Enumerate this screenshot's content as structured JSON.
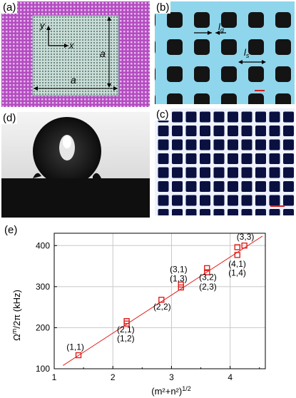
{
  "panels": {
    "a": {
      "label": "(a)",
      "axis_y": "y",
      "axis_x": "x",
      "dim_vertical": "a",
      "dim_horizontal": "a"
    },
    "b": {
      "label": "(b)",
      "lg": "l",
      "lg_sub": "g",
      "ls": "l",
      "ls_sub": "s"
    },
    "c": {
      "label": "(c)"
    },
    "d": {
      "label": "(d)"
    },
    "e": {
      "label": "(e)"
    }
  },
  "chart_data": {
    "type": "scatter",
    "xlabel": "(m²+n²)^1/2",
    "ylabel": "Ω^m/2π (kHz)",
    "xlim": [
      1,
      4.6
    ],
    "ylim": [
      100,
      430
    ],
    "xticks": [
      1,
      2,
      3,
      4
    ],
    "yticks": [
      100,
      200,
      300,
      400
    ],
    "grid": true,
    "marker_color": "#e0201c",
    "fit_line": {
      "x": [
        1.15,
        4.55
      ],
      "y": [
        108,
        423
      ],
      "color": "#e0201c"
    },
    "points": [
      {
        "x": 1.414,
        "y": 133
      },
      {
        "x": 2.236,
        "y": 210
      },
      {
        "x": 2.236,
        "y": 216
      },
      {
        "x": 2.828,
        "y": 268
      },
      {
        "x": 3.162,
        "y": 298
      },
      {
        "x": 3.162,
        "y": 305
      },
      {
        "x": 3.606,
        "y": 335
      },
      {
        "x": 3.606,
        "y": 345
      },
      {
        "x": 4.123,
        "y": 377
      },
      {
        "x": 4.123,
        "y": 396
      },
      {
        "x": 4.243,
        "y": 400
      }
    ],
    "annotations": [
      {
        "text": "(1,1)",
        "x": 1.36,
        "y": 146
      },
      {
        "text": "(2,1)",
        "x": 2.22,
        "y": 189
      },
      {
        "text": "(1,2)",
        "x": 2.22,
        "y": 167
      },
      {
        "text": "(2,2)",
        "x": 2.84,
        "y": 244
      },
      {
        "text": "(3,1)",
        "x": 3.12,
        "y": 335
      },
      {
        "text": "(1,3)",
        "x": 3.12,
        "y": 313
      },
      {
        "text": "(3,2)",
        "x": 3.62,
        "y": 316
      },
      {
        "text": "(2,3)",
        "x": 3.62,
        "y": 293
      },
      {
        "text": "(4,1)",
        "x": 4.12,
        "y": 348
      },
      {
        "text": "(1,4)",
        "x": 4.12,
        "y": 327
      },
      {
        "text": "(3,3)",
        "x": 4.26,
        "y": 414
      }
    ]
  }
}
